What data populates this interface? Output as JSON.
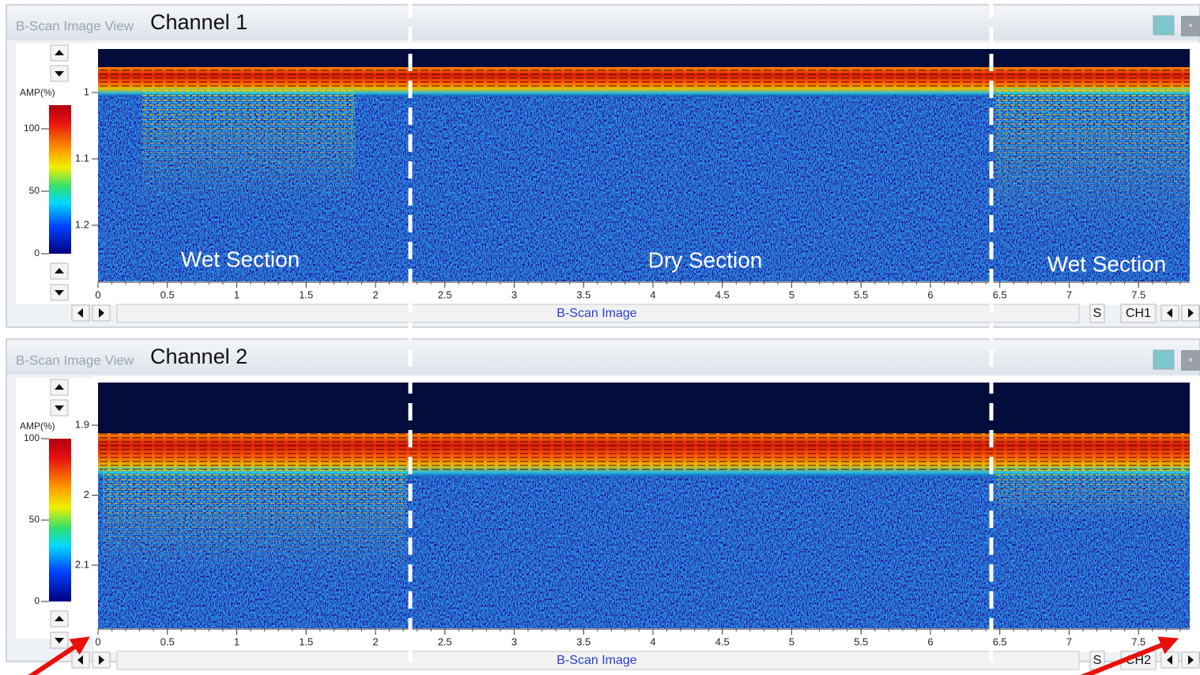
{
  "panels": [
    {
      "window_title": "B-Scan Image View",
      "title": "Channel 1",
      "colorbar": {
        "label": "AMP(%)",
        "ticks": [
          100,
          50,
          0
        ]
      },
      "y_ticks": [
        1,
        1.1,
        1.2
      ],
      "x_ticks": [
        0,
        0.5,
        1,
        1.5,
        2,
        2.5,
        3,
        3.5,
        4,
        4.5,
        5,
        5.5,
        6,
        6.5,
        7,
        7.5
      ],
      "x_label": "B-Scan Image",
      "buttons": [
        "S",
        "CH1"
      ],
      "sections": [
        "Wet Section",
        "Dry Section",
        "Wet Section"
      ]
    },
    {
      "window_title": "B-Scan Image View",
      "title": "Channel 2",
      "colorbar": {
        "label": "AMP(%)",
        "ticks": [
          100,
          50,
          0
        ]
      },
      "y_ticks": [
        1.9,
        2,
        2.1
      ],
      "x_ticks": [
        0,
        0.5,
        1,
        1.5,
        2,
        2.5,
        3,
        3.5,
        4,
        4.5,
        5,
        5.5,
        6,
        6.5,
        7,
        7.5
      ],
      "x_label": "B-Scan Image",
      "buttons": [
        "S",
        "CH2"
      ]
    }
  ]
}
